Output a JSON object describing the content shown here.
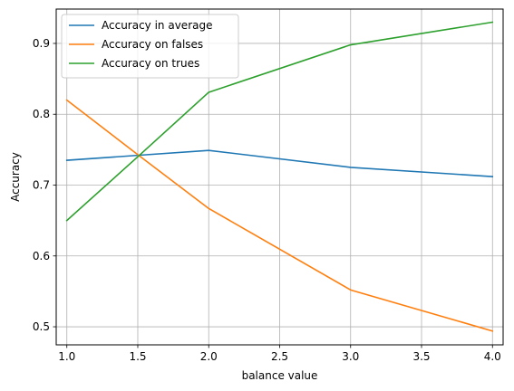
{
  "chart_data": {
    "type": "line",
    "title": "",
    "xlabel": "balance value",
    "ylabel": "Accuracy",
    "x": [
      1.0,
      1.5,
      2.0,
      3.0,
      4.0
    ],
    "xlim": [
      0.925,
      4.075
    ],
    "ylim": [
      0.4745,
      0.9485
    ],
    "xticks": [
      1.0,
      1.5,
      2.0,
      2.5,
      3.0,
      3.5,
      4.0
    ],
    "xtick_labels": [
      "1.0",
      "1.5",
      "2.0",
      "2.5",
      "3.0",
      "3.5",
      "4.0"
    ],
    "yticks": [
      0.5,
      0.6,
      0.7,
      0.8,
      0.9
    ],
    "ytick_labels": [
      "0.5",
      "0.6",
      "0.7",
      "0.8",
      "0.9"
    ],
    "grid": true,
    "legend_position": "top-left",
    "series": [
      {
        "name": "Accuracy in average",
        "color": "#1f77b4",
        "values": [
          0.735,
          0.742,
          0.749,
          0.725,
          0.712
        ]
      },
      {
        "name": "Accuracy on falses",
        "color": "#ff7f0e",
        "values": [
          0.82,
          0.743,
          0.667,
          0.552,
          0.494
        ]
      },
      {
        "name": "Accuracy on trues",
        "color": "#2ca02c",
        "values": [
          0.65,
          0.74,
          0.831,
          0.898,
          0.93
        ]
      }
    ]
  }
}
